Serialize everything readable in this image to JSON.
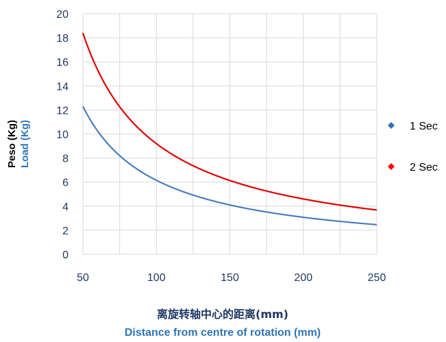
{
  "chart_data": {
    "type": "line",
    "xlabel_cn": "离旋转轴中心的距离(mm)",
    "xlabel": "Distance from centre of rotation (mm)",
    "ylabel_1": "Peso (Kg)",
    "ylabel_2": "Load (Kg)",
    "xlim": [
      50,
      250
    ],
    "ylim": [
      0,
      20
    ],
    "x_ticks": [
      50,
      100,
      150,
      200,
      250
    ],
    "y_ticks": [
      0,
      2,
      4,
      6,
      8,
      10,
      12,
      14,
      16,
      18,
      20
    ],
    "grid": true,
    "legend_position": "right",
    "series": [
      {
        "name": "1 Sec",
        "color": "#4a7ebb",
        "marker_color": "#2e75b6",
        "x": [
          50,
          60,
          70,
          80,
          90,
          100,
          110,
          120,
          130,
          140,
          150,
          160,
          170,
          180,
          190,
          200,
          210,
          220,
          230,
          240,
          250
        ],
        "values": [
          12.3,
          10.25,
          8.79,
          7.69,
          6.83,
          6.15,
          5.59,
          5.13,
          4.73,
          4.39,
          4.1,
          3.84,
          3.62,
          3.42,
          3.24,
          3.08,
          2.93,
          2.8,
          2.67,
          2.56,
          2.46
        ]
      },
      {
        "name": "2 Sec",
        "color": "#e00000",
        "marker_color": "#ff0000",
        "x": [
          50,
          60,
          70,
          80,
          90,
          100,
          110,
          120,
          130,
          140,
          150,
          160,
          170,
          180,
          190,
          200,
          210,
          220,
          230,
          240,
          250
        ],
        "values": [
          18.4,
          15.33,
          13.14,
          11.5,
          10.22,
          9.2,
          8.36,
          7.67,
          7.08,
          6.57,
          6.13,
          5.75,
          5.41,
          5.11,
          4.84,
          4.6,
          4.38,
          4.18,
          4.0,
          3.83,
          3.68
        ]
      }
    ]
  }
}
